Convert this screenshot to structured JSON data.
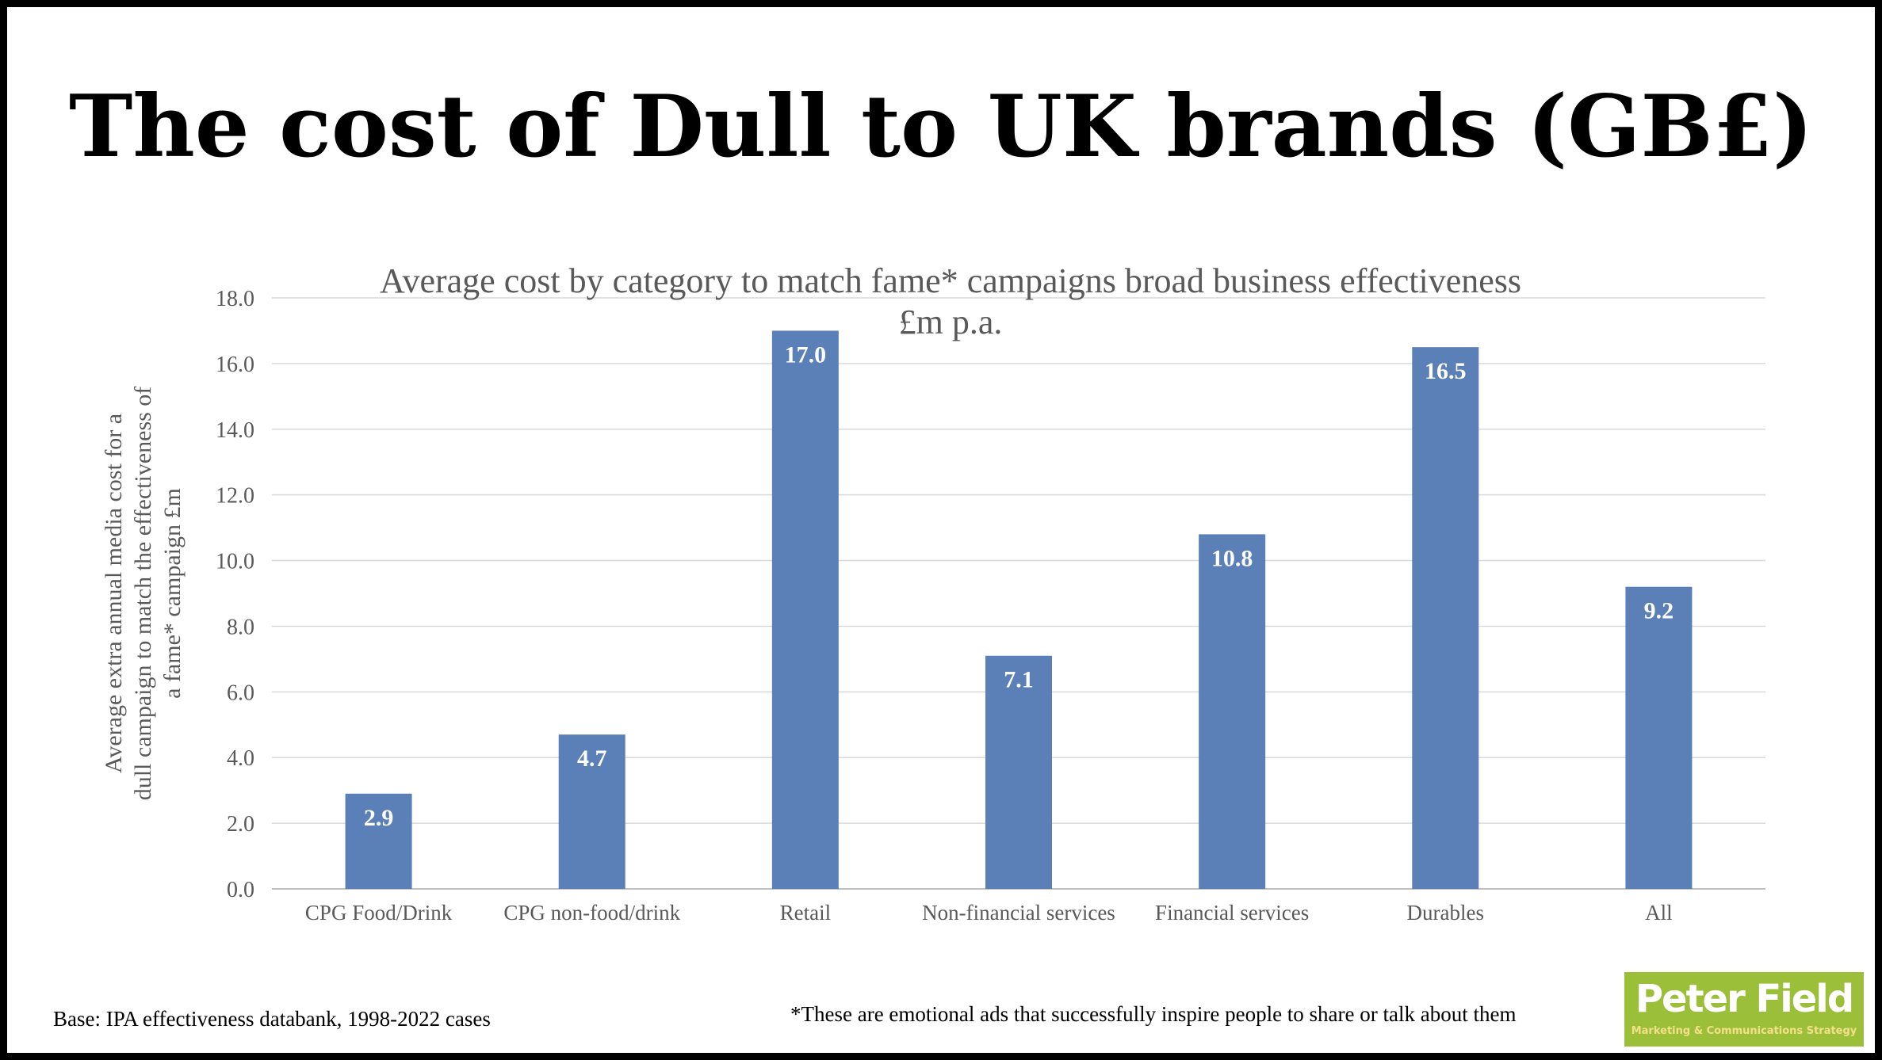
{
  "slide": {
    "title": "The cost of Dull to UK brands (GB£)",
    "footer_base": "Base: IPA effectiveness databank, 1998-2022 cases",
    "footer_note": "*These are emotional ads that successfully inspire people to share or talk about them",
    "logo": {
      "name": "Peter Field",
      "tagline": "Marketing & Communications Strategy",
      "color": "#9cbf3a"
    }
  },
  "chart_data": {
    "type": "bar",
    "title": "Average cost by category to match fame* campaigns broad business effectiveness",
    "subtitle": "£m p.a.",
    "ylabel": "Average extra annual media cost for a dull campaign to match the effectiveness of a fame* campaign £m",
    "xlabel": "",
    "categories": [
      "CPG Food/Drink",
      "CPG non-food/drink",
      "Retail",
      "Non-financial services",
      "Financial services",
      "Durables",
      "All"
    ],
    "values": [
      2.9,
      4.7,
      17.0,
      7.1,
      10.8,
      16.5,
      9.2
    ],
    "data_labels": [
      "2.9",
      "4.7",
      "17.0",
      "7.1",
      "10.8",
      "16.5",
      "9.2"
    ],
    "ylim": [
      0,
      18
    ],
    "yticks": [
      "0.0",
      "2.0",
      "4.0",
      "6.0",
      "8.0",
      "10.0",
      "12.0",
      "14.0",
      "16.0",
      "18.0"
    ],
    "grid": true,
    "bar_color": "#5b80b8"
  }
}
